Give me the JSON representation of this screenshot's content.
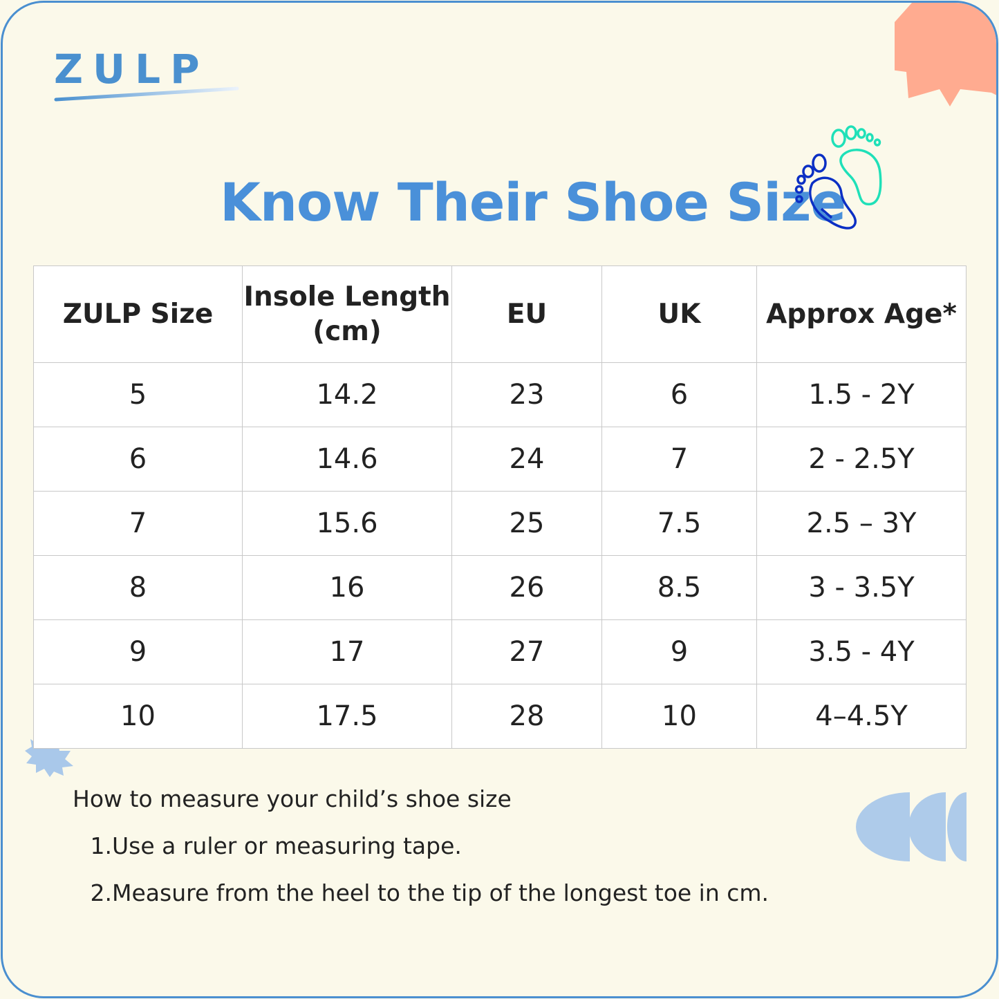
{
  "brand": {
    "logo_text": "ZULP",
    "color": "#4a90cf"
  },
  "title": "Know Their Shoe Size",
  "colors": {
    "title": "#4a90d9",
    "sun": "#ffab90",
    "accent_blue": "#b0cdea",
    "foot_left": "#0b2fc4",
    "foot_right": "#1fe0b8",
    "background": "#fbf9ea"
  },
  "table": {
    "headers": [
      "ZULP Size",
      "Insole Length (cm)",
      "EU",
      "UK",
      "Approx Age*"
    ],
    "header_lines": {
      "insole_1": "Insole Length",
      "insole_2": "(cm)"
    },
    "rows": [
      [
        "5",
        "14.2",
        "23",
        "6",
        "1.5 - 2Y"
      ],
      [
        "6",
        "14.6",
        "24",
        "7",
        "2 - 2.5Y"
      ],
      [
        "7",
        "15.6",
        "25",
        "7.5",
        "2.5 – 3Y"
      ],
      [
        "8",
        "16",
        "26",
        "8.5",
        "3 - 3.5Y"
      ],
      [
        "9",
        "17",
        "27",
        "9",
        "3.5 - 4Y"
      ],
      [
        "10",
        "17.5",
        "28",
        "10",
        "4–4.5Y"
      ]
    ]
  },
  "instructions": {
    "heading": "How to measure your child’s shoe size",
    "steps": [
      {
        "num": "1.",
        "text": "Use a ruler or measuring tape."
      },
      {
        "num": "2.",
        "text": "Measure from the heel to the tip of the longest toe in cm."
      }
    ]
  }
}
